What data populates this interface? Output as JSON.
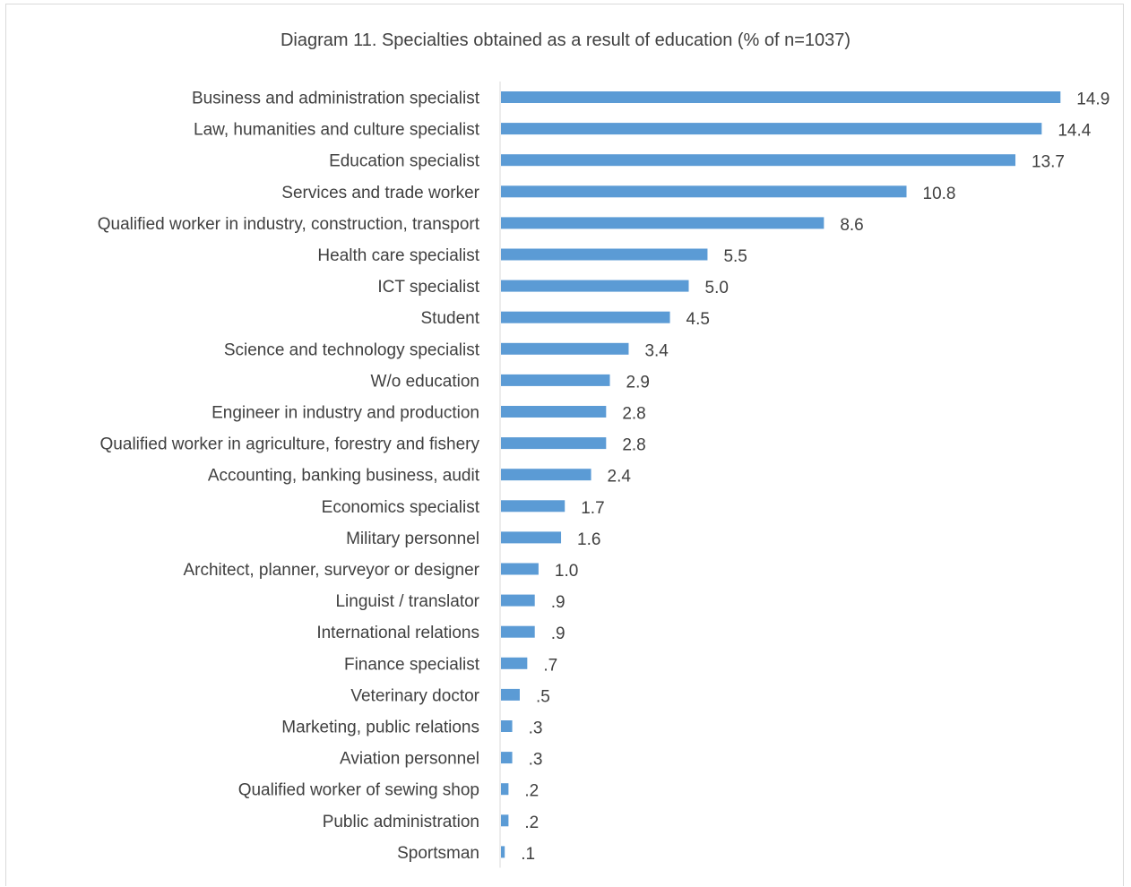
{
  "chart_data": {
    "type": "bar",
    "orientation": "horizontal",
    "title": "Diagram 11. Specialties obtained as a result of education (% of n=1037)",
    "xlabel": "",
    "ylabel": "",
    "grid": false,
    "legend": "none",
    "bar_color": "#5b9bd5",
    "axis_color": "#d9d9d9",
    "text_color": "#404040",
    "xlim": [
      0,
      15.6
    ],
    "categories": [
      "Business and administration specialist",
      "Law, humanities and culture specialist",
      "Education specialist",
      "Services and trade worker",
      "Qualified worker in industry, construction, transport",
      "Health care specialist",
      "ICT specialist",
      "Student",
      "Science and technology specialist",
      "W/o education",
      "Engineer in industry and production",
      "Qualified worker in agriculture, forestry and fishery",
      "Accounting, banking business, audit",
      "Economics specialist",
      "Military personnel",
      "Architect, planner, surveyor or designer",
      "Linguist / translator",
      "International relations",
      "Finance specialist",
      "Veterinary doctor",
      "Marketing, public relations",
      "Aviation personnel",
      "Qualified worker of  sewing shop",
      "Public administration",
      "Sportsman"
    ],
    "values": [
      14.9,
      14.4,
      13.7,
      10.8,
      8.6,
      5.5,
      5.0,
      4.5,
      3.4,
      2.9,
      2.8,
      2.8,
      2.4,
      1.7,
      1.6,
      1.0,
      0.9,
      0.9,
      0.7,
      0.5,
      0.3,
      0.3,
      0.2,
      0.2,
      0.1
    ],
    "value_labels": [
      "14.9",
      "14.4",
      "13.7",
      "10.8",
      "8.6",
      "5.5",
      "5.0",
      "4.5",
      "3.4",
      "2.9",
      "2.8",
      "2.8",
      "2.4",
      "1.7",
      "1.6",
      "1.0",
      ".9",
      ".9",
      ".7",
      ".5",
      ".3",
      ".3",
      ".2",
      ".2",
      ".1"
    ]
  }
}
